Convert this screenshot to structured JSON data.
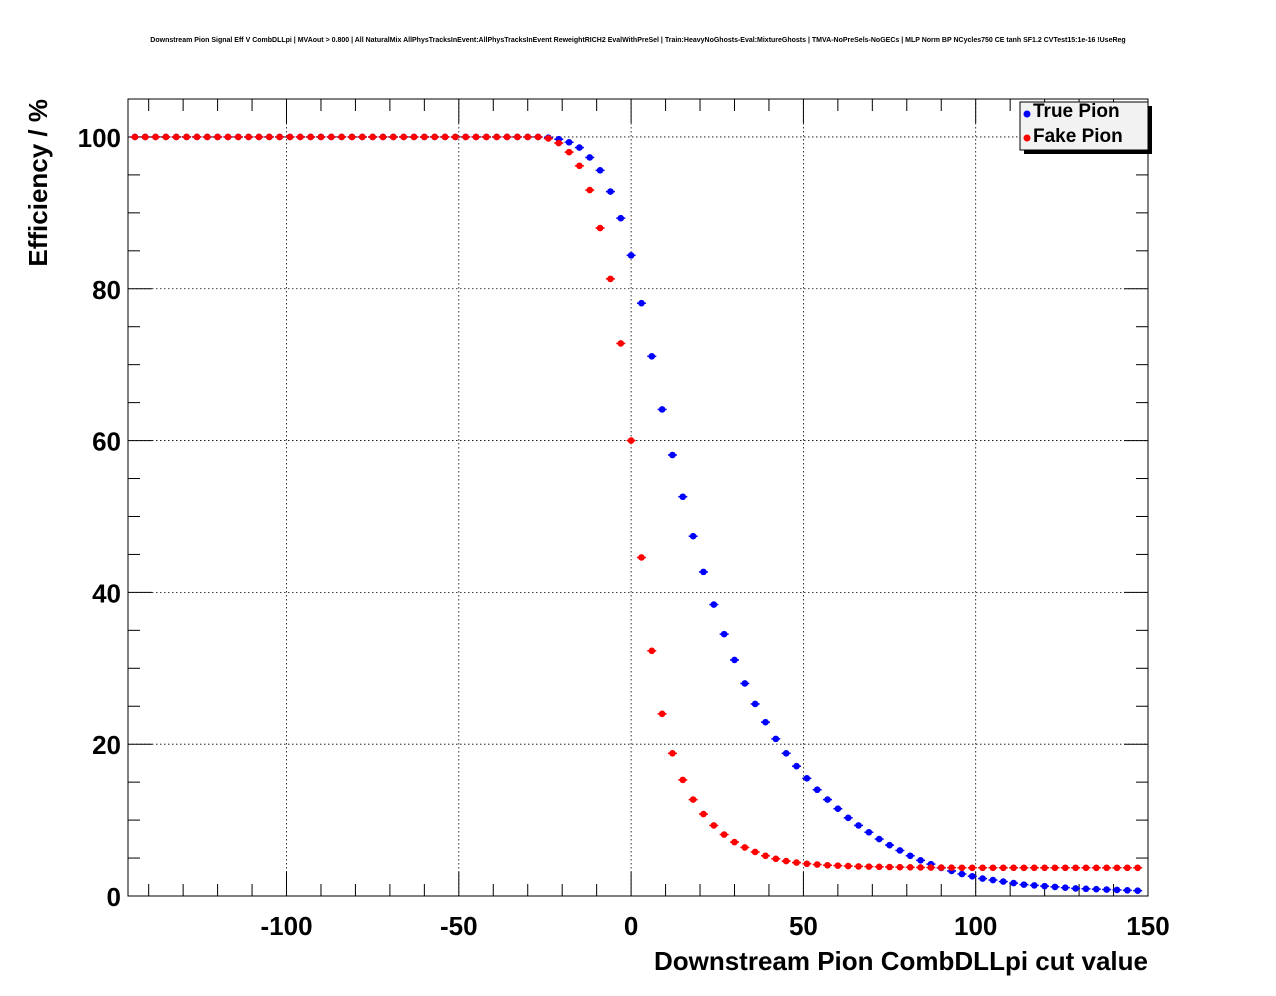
{
  "chart_data": {
    "type": "scatter",
    "title": "Downstream Pion Signal Eff V CombDLLpi | MVAout > 0.800 | All NaturalMix AllPhysTracksInEvent:AllPhysTracksInEvent ReweightRICH2 EvalWithPreSel | Train:HeavyNoGhosts-Eval:MixtureGhosts | TMVA-NoPreSels-NoGECs | MLP Norm BP NCycles750 CE tanh SF1.2 CVTest15:1e-16 !UseReg",
    "xlabel": "Downstream Pion CombDLLpi cut value",
    "ylabel": "Efficiency / %",
    "xlim": [
      -146,
      150
    ],
    "ylim": [
      0,
      105
    ],
    "xticks": [
      -100,
      -50,
      0,
      50,
      100,
      150
    ],
    "yticks": [
      0,
      20,
      40,
      60,
      80,
      100
    ],
    "xtick_labels": [
      "-100",
      "-50",
      "0",
      "50",
      "100",
      "150"
    ],
    "ytick_labels": [
      "0",
      "20",
      "40",
      "60",
      "80",
      "100"
    ],
    "grid": true,
    "legend_position": "top-right",
    "x": [
      -144,
      -141,
      -138,
      -135,
      -132,
      -129,
      -126,
      -123,
      -120,
      -117,
      -114,
      -111,
      -108,
      -105,
      -102,
      -99,
      -96,
      -93,
      -90,
      -87,
      -84,
      -81,
      -78,
      -75,
      -72,
      -69,
      -66,
      -63,
      -60,
      -57,
      -54,
      -51,
      -48,
      -45,
      -42,
      -39,
      -36,
      -33,
      -30,
      -27,
      -24,
      -21,
      -18,
      -15,
      -12,
      -9,
      -6,
      -3,
      0,
      3,
      6,
      9,
      12,
      15,
      18,
      21,
      24,
      27,
      30,
      33,
      36,
      39,
      42,
      45,
      48,
      51,
      54,
      57,
      60,
      63,
      66,
      69,
      72,
      75,
      78,
      81,
      84,
      87,
      90,
      93,
      96,
      99,
      102,
      105,
      108,
      111,
      114,
      117,
      120,
      123,
      126,
      129,
      132,
      135,
      138,
      141,
      144,
      147
    ],
    "series": [
      {
        "name": "True Pion",
        "color": "#0000ff",
        "values": [
          100,
          100,
          100,
          100,
          100,
          100,
          100,
          100,
          100,
          100,
          100,
          100,
          100,
          100,
          100,
          100,
          100,
          100,
          100,
          100,
          100,
          100,
          100,
          100,
          100,
          100,
          100,
          100,
          100,
          100,
          100,
          100,
          100,
          100,
          100,
          100,
          100,
          100,
          100,
          100,
          99.9,
          99.7,
          99.3,
          98.6,
          97.3,
          95.6,
          92.8,
          89.3,
          84.4,
          78.1,
          71.1,
          64.1,
          58.1,
          52.6,
          47.4,
          42.7,
          38.4,
          34.5,
          31.1,
          28,
          25.3,
          22.9,
          20.7,
          18.8,
          17.1,
          15.5,
          14,
          12.7,
          11.5,
          10.3,
          9.3,
          8.4,
          7.5,
          6.7,
          6,
          5.3,
          4.7,
          4.2,
          3.7,
          3.3,
          2.9,
          2.6,
          2.3,
          2.1,
          1.9,
          1.7,
          1.5,
          1.4,
          1.3,
          1.2,
          1.1,
          1,
          0.95,
          0.9,
          0.85,
          0.8,
          0.75,
          0.7
        ]
      },
      {
        "name": "Fake Pion",
        "color": "#ff0000",
        "values": [
          100,
          100,
          100,
          100,
          100,
          100,
          100,
          100,
          100,
          100,
          100,
          100,
          100,
          100,
          100,
          100,
          100,
          100,
          100,
          100,
          100,
          100,
          100,
          100,
          100,
          100,
          100,
          100,
          100,
          100,
          100,
          100,
          100,
          100,
          100,
          100,
          100,
          100,
          100,
          100,
          99.8,
          99.2,
          98,
          96.2,
          93,
          88,
          81.3,
          72.8,
          60,
          44.6,
          32.3,
          24,
          18.8,
          15.3,
          12.7,
          10.8,
          9.3,
          8.1,
          7.1,
          6.4,
          5.8,
          5.3,
          4.9,
          4.6,
          4.4,
          4.25,
          4.15,
          4.05,
          4,
          3.95,
          3.9,
          3.87,
          3.85,
          3.82,
          3.8,
          3.78,
          3.76,
          3.75,
          3.74,
          3.73,
          3.72,
          3.72,
          3.72,
          3.72,
          3.72,
          3.72,
          3.72,
          3.72,
          3.72,
          3.72,
          3.72,
          3.72,
          3.72,
          3.72,
          3.72,
          3.72,
          3.72,
          3.72
        ]
      }
    ]
  }
}
